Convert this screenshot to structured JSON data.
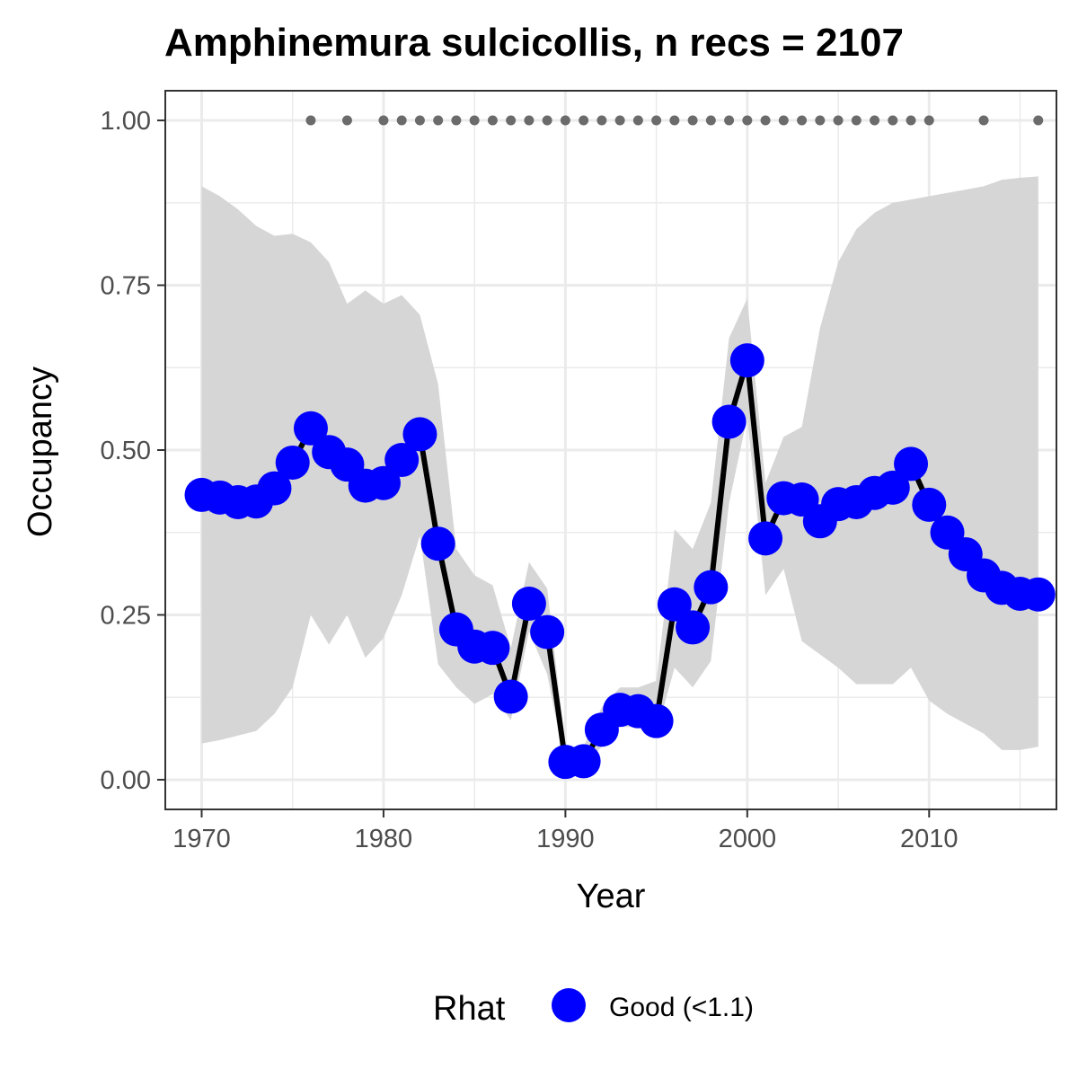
{
  "chart_data": {
    "type": "line",
    "title": "Amphinemura sulcicollis, n recs = 2107",
    "xlabel": "Year",
    "ylabel": "Occupancy",
    "xlim": [
      1968,
      2017
    ],
    "ylim": [
      -0.045,
      1.045
    ],
    "x_ticks": [
      1970,
      1980,
      1990,
      2000,
      2010
    ],
    "x_tick_labels": [
      "1970",
      "1980",
      "1990",
      "2000",
      "2010"
    ],
    "y_ticks": [
      0,
      0.25,
      0.5,
      0.75,
      1.0
    ],
    "y_tick_labels": [
      "0.00",
      "0.25",
      "0.50",
      "0.75",
      "1.00"
    ],
    "grid": true,
    "legend": {
      "title": "Rhat",
      "position": "bottom",
      "entries": [
        {
          "label": "Good (<1.1)",
          "color": "#0000ff"
        }
      ]
    },
    "colors": {
      "points": "#0000ff",
      "line": "#000000",
      "ribbon": "#d6d6d6",
      "record_dots": "#6b6b6b",
      "panel_border": "#333333",
      "grid": "#ebebeb"
    },
    "series": [
      {
        "name": "Occupancy",
        "x": [
          1970,
          1971,
          1972,
          1973,
          1974,
          1975,
          1976,
          1977,
          1978,
          1979,
          1980,
          1981,
          1982,
          1983,
          1984,
          1985,
          1986,
          1987,
          1988,
          1989,
          1990,
          1991,
          1992,
          1993,
          1994,
          1995,
          1996,
          1997,
          1998,
          1999,
          2000,
          2001,
          2002,
          2003,
          2004,
          2005,
          2006,
          2007,
          2008,
          2009,
          2010,
          2011,
          2012,
          2013,
          2014,
          2015,
          2016
        ],
        "y": [
          0.432,
          0.428,
          0.421,
          0.422,
          0.442,
          0.481,
          0.533,
          0.497,
          0.478,
          0.446,
          0.45,
          0.485,
          0.524,
          0.358,
          0.228,
          0.202,
          0.2,
          0.126,
          0.267,
          0.224,
          0.027,
          0.028,
          0.076,
          0.106,
          0.104,
          0.089,
          0.266,
          0.231,
          0.292,
          0.543,
          0.636,
          0.366,
          0.427,
          0.425,
          0.392,
          0.418,
          0.421,
          0.435,
          0.443,
          0.479,
          0.417,
          0.375,
          0.342,
          0.31,
          0.291,
          0.282,
          0.281
        ],
        "lower": [
          0.055,
          0.06,
          0.067,
          0.074,
          0.1,
          0.14,
          0.25,
          0.205,
          0.25,
          0.185,
          0.215,
          0.28,
          0.37,
          0.175,
          0.14,
          0.115,
          0.13,
          0.09,
          0.225,
          0.16,
          0.02,
          0.02,
          0.05,
          0.08,
          0.08,
          0.07,
          0.17,
          0.14,
          0.18,
          0.42,
          0.55,
          0.28,
          0.32,
          0.21,
          0.19,
          0.17,
          0.145,
          0.145,
          0.145,
          0.17,
          0.12,
          0.1,
          0.085,
          0.07,
          0.045,
          0.045,
          0.05
        ],
        "upper": [
          0.9,
          0.885,
          0.865,
          0.84,
          0.825,
          0.828,
          0.815,
          0.785,
          0.722,
          0.742,
          0.722,
          0.735,
          0.705,
          0.6,
          0.35,
          0.31,
          0.295,
          0.2,
          0.33,
          0.29,
          0.05,
          0.05,
          0.11,
          0.14,
          0.14,
          0.15,
          0.38,
          0.35,
          0.42,
          0.67,
          0.73,
          0.45,
          0.52,
          0.535,
          0.685,
          0.785,
          0.835,
          0.86,
          0.875,
          0.88,
          0.885,
          0.89,
          0.895,
          0.9,
          0.91,
          0.913,
          0.915
        ]
      }
    ],
    "record_years": [
      1976,
      1978,
      1980,
      1981,
      1982,
      1983,
      1984,
      1985,
      1986,
      1987,
      1988,
      1989,
      1990,
      1991,
      1992,
      1993,
      1994,
      1995,
      1996,
      1997,
      1998,
      1999,
      2000,
      2001,
      2002,
      2003,
      2004,
      2005,
      2006,
      2007,
      2008,
      2009,
      2010,
      2013,
      2016
    ],
    "record_level": 1.0
  }
}
